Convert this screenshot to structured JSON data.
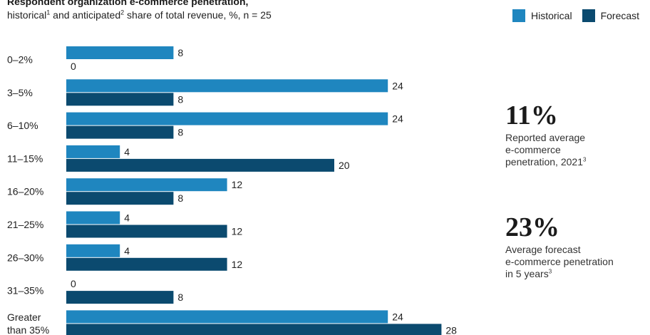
{
  "header": {
    "title": "Respondent organization e-commerce penetration,",
    "subtitle_parts": [
      "historical",
      "1",
      " and anticipated",
      "2",
      " share of total revenue, %, n = 25"
    ]
  },
  "legend": [
    {
      "label": "Historical",
      "color": "#1f86bf"
    },
    {
      "label": "Forecast",
      "color": "#0b4a6f"
    }
  ],
  "stats": [
    {
      "value": "11%",
      "desc_lines": [
        "Reported average",
        "e-commerce",
        "penetration, 2021"
      ],
      "footnote": "3"
    },
    {
      "value": "23%",
      "desc_lines": [
        "Average forecast",
        "e-commerce penetration",
        "in 5 years"
      ],
      "footnote": "3"
    }
  ],
  "chart_data": {
    "type": "bar",
    "orientation": "horizontal",
    "categories": [
      [
        "0–2%"
      ],
      [
        "3–5%"
      ],
      [
        "6–10%"
      ],
      [
        "11–15%"
      ],
      [
        "16–20%"
      ],
      [
        "21–25%"
      ],
      [
        "26–30%"
      ],
      [
        "31–35%"
      ],
      [
        "Greater",
        "than 35%"
      ]
    ],
    "series": [
      {
        "name": "Historical",
        "color": "#1f86bf",
        "values": [
          8,
          24,
          24,
          4,
          12,
          4,
          4,
          0,
          24
        ]
      },
      {
        "name": "Forecast",
        "color": "#0b4a6f",
        "values": [
          0,
          8,
          8,
          20,
          8,
          12,
          12,
          8,
          28
        ]
      }
    ],
    "value_labels": true,
    "legend_position": "top-right",
    "grid": false
  }
}
